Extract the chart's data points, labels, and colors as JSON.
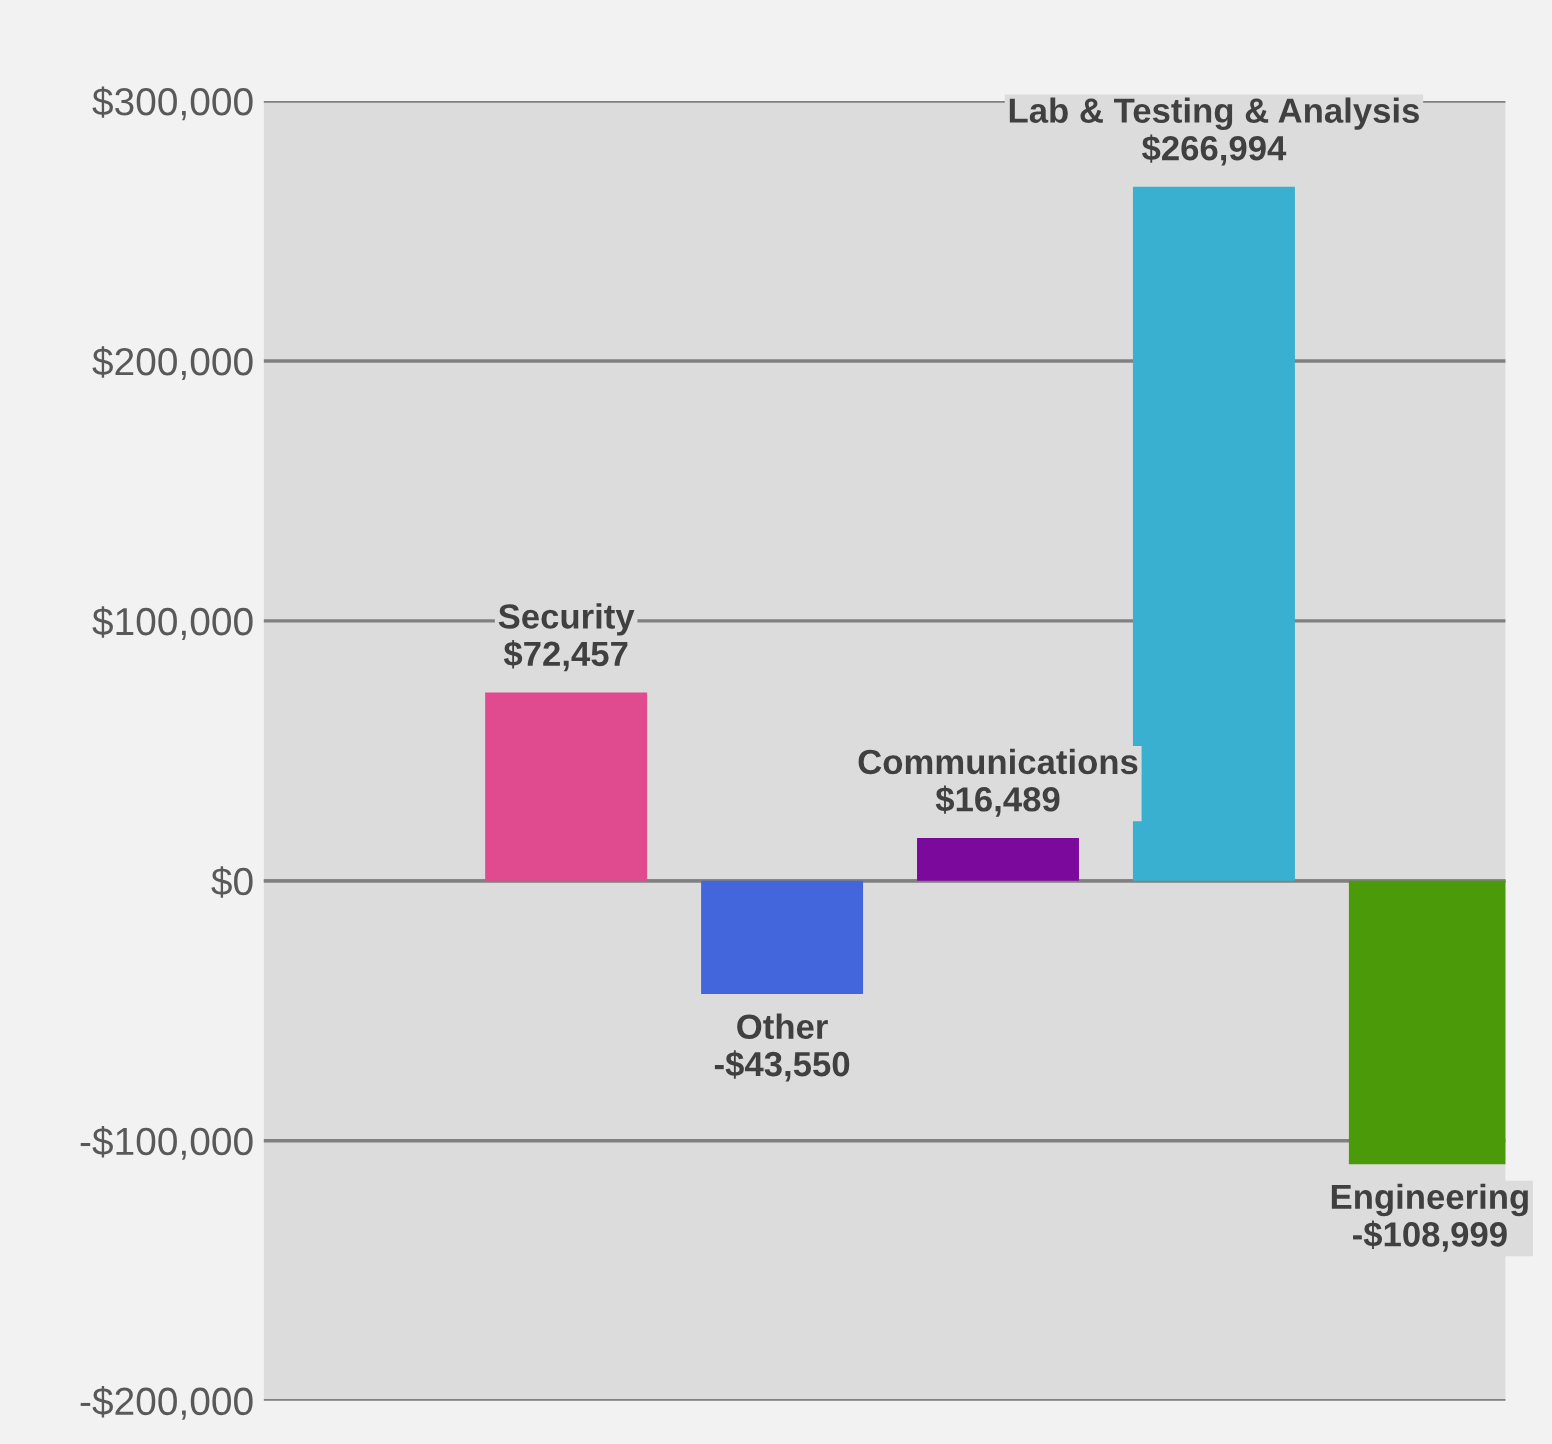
{
  "chart_data": {
    "type": "bar",
    "categories": [
      null,
      "Security",
      "Other",
      "Communications",
      "Lab & Testing & Analysis",
      "Engineering"
    ],
    "values": [
      null,
      72457,
      -43550,
      16489,
      266994,
      -108999
    ],
    "value_labels": [
      null,
      "$72,457",
      "-$43,550",
      "$16,489",
      "$266,994",
      "-$108,999"
    ],
    "colors": [
      "#e04a8f",
      "#e04a8f",
      "#4466dd",
      "#7b0a9c",
      "#3ab0d0",
      "#4a9a0a"
    ],
    "ylim": [
      -200000,
      300000
    ],
    "yticks": [
      {
        "value": -200000,
        "label": "-$200,000"
      },
      {
        "value": -100000,
        "label": "-$100,000"
      },
      {
        "value": 0,
        "label": "$0"
      },
      {
        "value": 100000,
        "label": "$100,000"
      },
      {
        "value": 200000,
        "label": "$200,000"
      },
      {
        "value": 300000,
        "label": "$300,000"
      }
    ],
    "grid": "y",
    "legend": false,
    "tick_labels": "y"
  }
}
